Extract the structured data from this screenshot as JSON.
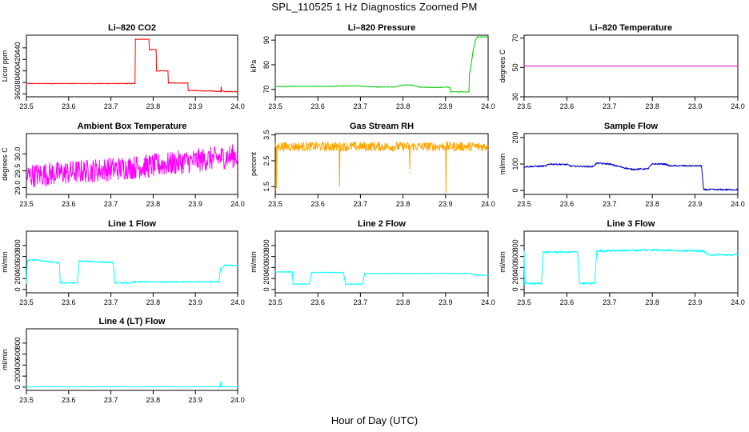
{
  "page": {
    "title": "SPL_110525  1 Hz Diagnostics Zoomed PM",
    "xlabel": "Hour of Day (UTC)"
  },
  "chart_data": [
    {
      "type": "line",
      "title": "Li–820 CO2",
      "ylabel": "Licor ppm",
      "xlim": [
        23.5,
        24.0
      ],
      "ylim": [
        355,
        462
      ],
      "x_ticks": [
        23.5,
        23.6,
        23.7,
        23.8,
        23.9,
        24.0
      ],
      "y_ticks": [
        360,
        380,
        400,
        420,
        440
      ],
      "color": "#ff0000",
      "noise": 0.6,
      "series": [
        {
          "x": [
            23.5,
            23.75,
            23.752,
            23.757,
            23.758,
            23.79,
            23.791,
            23.807,
            23.808,
            23.835,
            23.836,
            23.85,
            23.8505,
            23.882,
            23.883,
            23.9,
            23.92,
            23.94,
            23.96,
            23.961,
            23.962,
            23.968,
            23.98,
            24.0
          ],
          "y": [
            378,
            378,
            378,
            378,
            455,
            455,
            437,
            437,
            400,
            400,
            379,
            379,
            379,
            379,
            366,
            366,
            365,
            365,
            364,
            372,
            366,
            364,
            364,
            364
          ]
        }
      ]
    },
    {
      "type": "line",
      "title": "Li–820 Pressure",
      "ylabel": "kPa",
      "xlim": [
        23.5,
        24.0
      ],
      "ylim": [
        67,
        92
      ],
      "x_ticks": [
        23.5,
        23.6,
        23.7,
        23.8,
        23.9,
        24.0
      ],
      "y_ticks": [
        70,
        80,
        90
      ],
      "color": "#00cc00",
      "noise": 0.12,
      "series": [
        {
          "x": [
            23.5,
            23.62,
            23.66,
            23.7,
            23.72,
            23.74,
            23.78,
            23.8,
            23.82,
            23.84,
            23.87,
            23.91,
            23.912,
            23.955,
            23.956,
            23.96,
            23.965,
            23.97,
            23.975,
            23.985,
            24.0
          ],
          "y": [
            71.2,
            71.2,
            71.4,
            71.4,
            71.1,
            71.0,
            71.0,
            71.8,
            71.8,
            70.9,
            70.8,
            70.9,
            69.0,
            69.0,
            76,
            80,
            86,
            90,
            91.3,
            91.3,
            91.3
          ]
        }
      ]
    },
    {
      "type": "line",
      "title": "Li–820 Temperature",
      "ylabel": "degrees C",
      "xlim": [
        23.5,
        24.0
      ],
      "ylim": [
        30,
        72
      ],
      "x_ticks": [
        23.5,
        23.6,
        23.7,
        23.8,
        23.9,
        24.0
      ],
      "y_ticks": [
        30,
        50,
        70
      ],
      "color": "#cc00cc",
      "noise": 0,
      "series": [
        {
          "x": [
            23.5,
            24.0
          ],
          "y": [
            51,
            51
          ]
        }
      ]
    },
    {
      "type": "line",
      "title": "Ambient Box Temperature",
      "ylabel": "degrees C",
      "xlim": [
        23.5,
        24.0
      ],
      "ylim": [
        28.8,
        30.6
      ],
      "x_ticks": [
        23.5,
        23.6,
        23.7,
        23.8,
        23.9,
        24.0
      ],
      "y_ticks": [
        29.0,
        29.5,
        30.0
      ],
      "color": "#ff00ff",
      "noise": 0.35,
      "series": [
        {
          "x": [
            23.5,
            23.6,
            23.7,
            23.8,
            23.9,
            24.0
          ],
          "y": [
            29.35,
            29.45,
            29.55,
            29.65,
            29.8,
            29.95
          ]
        }
      ]
    },
    {
      "type": "line",
      "title": "Gas Stream RH",
      "ylabel": "percent",
      "xlim": [
        23.5,
        24.0
      ],
      "ylim": [
        1.2,
        3.55
      ],
      "x_ticks": [
        23.5,
        23.6,
        23.7,
        23.8,
        23.9,
        24.0
      ],
      "y_ticks": [
        1.5,
        2.5,
        3.5
      ],
      "color": "#ffa500",
      "noise": 0.18,
      "series": [
        {
          "x": [
            23.5,
            23.502,
            23.503,
            23.504,
            23.65,
            23.651,
            23.652,
            23.653,
            23.815,
            23.816,
            23.817,
            23.818,
            23.9,
            23.901,
            23.902,
            23.903,
            24.0
          ],
          "y": [
            3.05,
            3.05,
            1.3,
            3.05,
            3.05,
            1.6,
            3.05,
            3.05,
            3.05,
            2.05,
            3.05,
            3.05,
            3.05,
            1.4,
            3.05,
            3.05,
            3.05
          ]
        }
      ]
    },
    {
      "type": "line",
      "title": "Sample Flow",
      "ylabel": "ml/min",
      "xlim": [
        23.5,
        24.0
      ],
      "ylim": [
        -15,
        215
      ],
      "x_ticks": [
        23.5,
        23.6,
        23.7,
        23.8,
        23.9,
        24.0
      ],
      "y_ticks": [
        0,
        100,
        200
      ],
      "color": "#0000cc",
      "noise": 3,
      "series": [
        {
          "x": [
            23.5,
            23.55,
            23.56,
            23.6,
            23.61,
            23.66,
            23.67,
            23.7,
            23.71,
            23.75,
            23.76,
            23.79,
            23.8,
            23.83,
            23.84,
            23.915,
            23.92,
            24.0
          ],
          "y": [
            90,
            92,
            100,
            98,
            92,
            90,
            103,
            100,
            95,
            80,
            80,
            82,
            100,
            100,
            93,
            93,
            3,
            3
          ]
        }
      ]
    },
    {
      "type": "line",
      "title": "Line 1 Flow",
      "ylabel": "ml/min",
      "xlim": [
        23.5,
        24.0
      ],
      "ylim": [
        -60,
        1060
      ],
      "x_ticks": [
        23.5,
        23.6,
        23.7,
        23.8,
        23.9,
        24.0
      ],
      "y_ticks": [
        0,
        200,
        400,
        600,
        800
      ],
      "color": "#00ffff",
      "noise": 12,
      "series": [
        {
          "x": [
            23.5,
            23.502,
            23.504,
            23.52,
            23.578,
            23.58,
            23.62,
            23.625,
            23.705,
            23.71,
            23.75,
            23.752,
            23.955,
            23.96,
            23.97,
            24.0
          ],
          "y": [
            120,
            500,
            530,
            540,
            480,
            120,
            120,
            520,
            490,
            120,
            120,
            140,
            140,
            380,
            440,
            440
          ]
        }
      ]
    },
    {
      "type": "line",
      "title": "Line 2 Flow",
      "ylabel": "ml/min",
      "xlim": [
        23.5,
        24.0
      ],
      "ylim": [
        -60,
        1060
      ],
      "x_ticks": [
        23.5,
        23.6,
        23.7,
        23.8,
        23.9,
        24.0
      ],
      "y_ticks": [
        0,
        200,
        400,
        600,
        800
      ],
      "color": "#00ffff",
      "noise": 7,
      "series": [
        {
          "x": [
            23.5,
            23.54,
            23.542,
            23.58,
            23.585,
            23.66,
            23.665,
            23.705,
            23.71,
            23.96,
            23.97,
            24.0
          ],
          "y": [
            320,
            320,
            100,
            100,
            310,
            310,
            100,
            100,
            290,
            290,
            260,
            260
          ]
        }
      ]
    },
    {
      "type": "line",
      "title": "Line 3 Flow",
      "ylabel": "ml/min",
      "xlim": [
        23.5,
        24.0
      ],
      "ylim": [
        -60,
        1060
      ],
      "x_ticks": [
        23.5,
        23.6,
        23.7,
        23.8,
        23.9,
        24.0
      ],
      "y_ticks": [
        0,
        200,
        400,
        600,
        800
      ],
      "color": "#00ffff",
      "noise": 18,
      "series": [
        {
          "x": [
            23.5,
            23.501,
            23.503,
            23.54,
            23.545,
            23.625,
            23.63,
            23.665,
            23.67,
            23.8,
            23.92,
            23.93,
            24.0
          ],
          "y": [
            700,
            110,
            110,
            110,
            680,
            680,
            110,
            110,
            700,
            720,
            700,
            630,
            630
          ]
        }
      ]
    },
    {
      "type": "line",
      "title": "Line 4 (LT) Flow",
      "ylabel": "ml/min",
      "xlim": [
        23.5,
        24.0
      ],
      "ylim": [
        -60,
        1060
      ],
      "x_ticks": [
        23.5,
        23.6,
        23.7,
        23.8,
        23.9,
        24.0
      ],
      "y_ticks": [
        0,
        200,
        400,
        600,
        800
      ],
      "color": "#00ffff",
      "noise": 2,
      "series": [
        {
          "x": [
            23.5,
            23.958,
            23.959,
            23.96,
            23.961,
            24.0
          ],
          "y": [
            5,
            5,
            90,
            5,
            5,
            5
          ]
        }
      ]
    }
  ]
}
